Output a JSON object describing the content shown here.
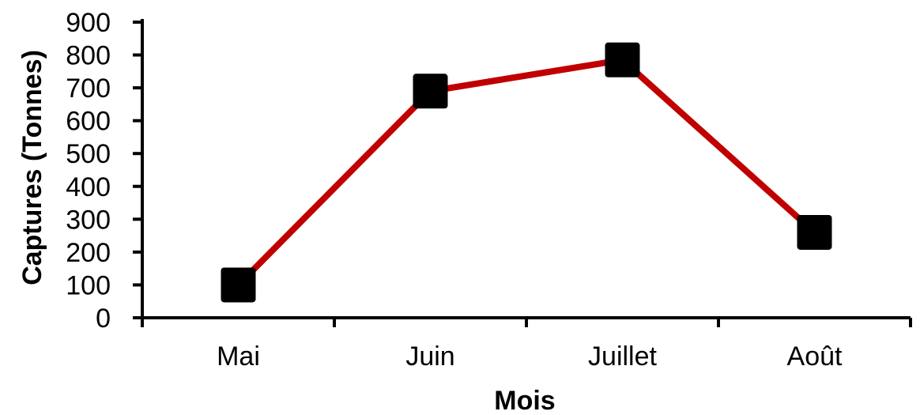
{
  "chart_data": {
    "type": "line",
    "title": "",
    "xlabel": "Mois",
    "ylabel": "Captures (Tonnes)",
    "categories": [
      "Mai",
      "Juin",
      "Juillet",
      "Août"
    ],
    "series": [
      {
        "values": [
          100,
          690,
          785,
          260
        ]
      }
    ],
    "ylim": [
      0,
      900
    ],
    "yticks": [
      0,
      100,
      200,
      300,
      400,
      500,
      600,
      700,
      800,
      900
    ],
    "grid": false,
    "legend": "none",
    "line_color": "#c00000",
    "marker_color": "#000000",
    "marker_shape": "square"
  }
}
